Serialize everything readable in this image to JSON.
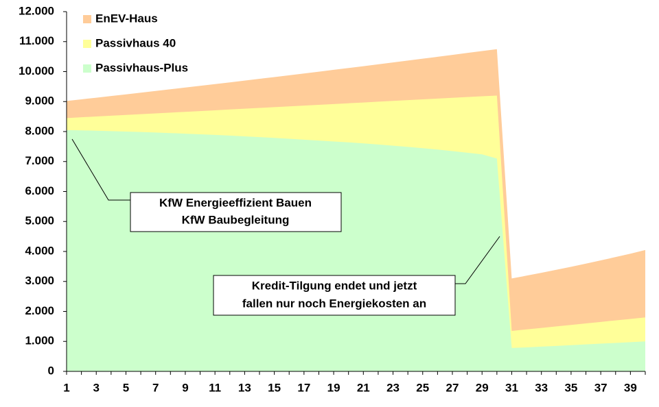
{
  "chart_data": {
    "type": "area",
    "categories": [
      "1",
      null,
      "3",
      null,
      "5",
      null,
      "7",
      null,
      "9",
      null,
      "11",
      null,
      "13",
      null,
      "15",
      null,
      "17",
      null,
      "19",
      null,
      "21",
      null,
      "23",
      null,
      "25",
      null,
      "27",
      null,
      "29",
      null,
      "31",
      null,
      "33",
      null,
      "35",
      null,
      "37",
      null,
      "39",
      null
    ],
    "series": [
      {
        "name": "EnEV-Haus",
        "color": "#ffcc99",
        "values": [
          9020,
          9075,
          9130,
          9185,
          9241,
          9297,
          9354,
          9411,
          9468,
          9525,
          9583,
          9641,
          9700,
          9759,
          9818,
          9878,
          9938,
          9998,
          10059,
          10120,
          10181,
          10243,
          10305,
          10368,
          10431,
          10494,
          10558,
          10622,
          10686,
          10750,
          3100,
          3193,
          3289,
          3388,
          3489,
          3594,
          3702,
          3813,
          3927,
          4050
        ]
      },
      {
        "name": "Passivhaus 40",
        "color": "#ffff99",
        "values": [
          8450,
          8476,
          8502,
          8528,
          8554,
          8580,
          8606,
          8632,
          8658,
          8684,
          8710,
          8736,
          8762,
          8788,
          8814,
          8840,
          8866,
          8892,
          8918,
          8944,
          8970,
          8996,
          9022,
          9048,
          9074,
          9100,
          9126,
          9152,
          9178,
          9200,
          1350,
          1400,
          1450,
          1500,
          1550,
          1600,
          1650,
          1700,
          1750,
          1800
        ]
      },
      {
        "name": "Passivhaus-Plus",
        "color": "#ccffcc",
        "values": [
          8050,
          8040,
          8030,
          8015,
          8000,
          7985,
          7970,
          7950,
          7930,
          7910,
          7890,
          7865,
          7840,
          7815,
          7790,
          7760,
          7730,
          7700,
          7670,
          7640,
          7605,
          7570,
          7530,
          7490,
          7445,
          7400,
          7350,
          7295,
          7240,
          7100,
          780,
          800,
          825,
          850,
          875,
          900,
          925,
          950,
          975,
          1000
        ]
      }
    ],
    "ylim": [
      0,
      12000
    ],
    "yticks": [
      0,
      {
        "value": 1000,
        "label": "1.000"
      },
      {
        "value": 2000,
        "label": "2.000"
      },
      {
        "value": 3000,
        "label": "3.000"
      },
      {
        "value": 4000,
        "label": "4.000"
      },
      {
        "value": 5000,
        "label": "5.000"
      },
      {
        "value": 6000,
        "label": "6.000"
      },
      {
        "value": 7000,
        "label": "7.000"
      },
      {
        "value": 8000,
        "label": "8.000"
      },
      {
        "value": 9000,
        "label": "9.000"
      },
      {
        "value": 10000,
        "label": "10.000"
      },
      {
        "value": 11000,
        "label": "11.000"
      },
      {
        "value": 12000,
        "label": "12.000"
      }
    ],
    "legend": "top-left",
    "annotations": [
      {
        "lines": [
          "KfW Energieeffizient Bauen",
          "KfW Baubegleitung"
        ]
      },
      {
        "lines": [
          "Kredit-Tilgung  endet und jetzt",
          "fallen nur noch Energiekosten an"
        ]
      }
    ]
  }
}
